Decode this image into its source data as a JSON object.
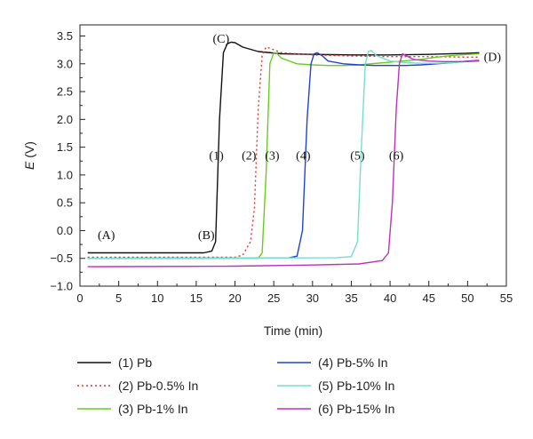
{
  "chart_data": {
    "type": "line",
    "title": "",
    "xlabel": "Time (min)",
    "ylabel_italic": "E",
    "ylabel_rest": " (V)",
    "xlim": [
      0,
      55
    ],
    "ylim": [
      -1.0,
      3.7
    ],
    "xticks": [
      "0",
      "5",
      "10",
      "15",
      "20",
      "25",
      "30",
      "35",
      "40",
      "45",
      "50",
      "55"
    ],
    "yticks": [
      "−1.0",
      "−0.5",
      "0.0",
      "0.5",
      "1.0",
      "1.5",
      "2.0",
      "2.5",
      "3.0",
      "3.5"
    ],
    "grid": false,
    "legend_position": "bottom",
    "annotations": [
      {
        "text": "(A)",
        "x": 3.4,
        "y": -0.15
      },
      {
        "text": "(B)",
        "x": 16.3,
        "y": -0.15
      },
      {
        "text": "(C)",
        "x": 18.2,
        "y": 3.38
      },
      {
        "text": "(D)",
        "x": 53.2,
        "y": 3.05
      },
      {
        "text": "(1)",
        "x": 17.6,
        "y": 1.28
      },
      {
        "text": "(2)",
        "x": 21.8,
        "y": 1.28
      },
      {
        "text": "(3)",
        "x": 24.8,
        "y": 1.28
      },
      {
        "text": "(4)",
        "x": 28.8,
        "y": 1.28
      },
      {
        "text": "(5)",
        "x": 35.8,
        "y": 1.28
      },
      {
        "text": "(6)",
        "x": 40.8,
        "y": 1.28
      }
    ],
    "series": [
      {
        "name": "(1) Pb",
        "color": "#111111",
        "dash": "",
        "x": [
          1,
          16,
          17,
          17.5,
          18,
          18.5,
          19,
          19.5,
          20,
          21,
          23,
          26,
          30,
          35,
          40,
          45,
          50,
          51.5
        ],
        "y": [
          -0.4,
          -0.4,
          -0.37,
          -0.2,
          2.0,
          3.2,
          3.36,
          3.39,
          3.38,
          3.3,
          3.22,
          3.18,
          3.17,
          3.16,
          3.16,
          3.17,
          3.19,
          3.2
        ]
      },
      {
        "name": "(2) Pb-0.5% In",
        "color": "#dd3333",
        "dash": "2,3",
        "x": [
          1,
          20,
          21,
          22,
          22.5,
          23,
          23.5,
          24,
          24.5,
          26,
          30,
          35,
          40,
          45,
          50,
          51.5
        ],
        "y": [
          -0.48,
          -0.48,
          -0.44,
          -0.2,
          0.4,
          2.2,
          3.15,
          3.3,
          3.28,
          3.2,
          3.16,
          3.14,
          3.13,
          3.13,
          3.12,
          3.12
        ]
      },
      {
        "name": "(3) Pb-1% In",
        "color": "#66cc22",
        "dash": "",
        "x": [
          1,
          23,
          23.5,
          24,
          24.5,
          25,
          25.3,
          26,
          28,
          30,
          32,
          34,
          36,
          40,
          44,
          46,
          48,
          50,
          51.5
        ],
        "y": [
          -0.5,
          -0.5,
          -0.4,
          1.0,
          3.0,
          3.2,
          3.2,
          3.1,
          3.0,
          2.98,
          2.97,
          2.97,
          2.98,
          3.03,
          3.08,
          3.12,
          3.15,
          3.17,
          3.18
        ]
      },
      {
        "name": "(4) Pb-5% In",
        "color": "#2244cc",
        "dash": "",
        "x": [
          1,
          27,
          28,
          28.7,
          29.3,
          29.8,
          30.2,
          30.6,
          31.2,
          32,
          34,
          36,
          38,
          40,
          42,
          44,
          46,
          48,
          50,
          51.5
        ],
        "y": [
          -0.5,
          -0.49,
          -0.46,
          0.0,
          2.0,
          3.0,
          3.18,
          3.2,
          3.15,
          3.05,
          3.0,
          2.98,
          2.97,
          2.97,
          2.97,
          2.98,
          3.0,
          3.02,
          3.05,
          3.06
        ]
      },
      {
        "name": "(5) Pb-10% In",
        "color": "#77ddcc",
        "dash": "",
        "x": [
          1,
          33,
          35,
          35.8,
          36.3,
          36.8,
          37.2,
          37.6,
          38.2,
          40,
          42,
          44,
          46,
          48,
          50,
          51.5
        ],
        "y": [
          -0.5,
          -0.49,
          -0.47,
          -0.2,
          1.5,
          3.0,
          3.22,
          3.24,
          3.15,
          3.05,
          3.02,
          3.01,
          3.01,
          3.02,
          3.04,
          3.05
        ]
      },
      {
        "name": "(6) Pb-15% In",
        "color": "#bb33bb",
        "dash": "",
        "x": [
          1,
          20,
          30,
          36,
          39,
          39.8,
          40.3,
          40.8,
          41.2,
          41.6,
          42,
          43,
          45,
          47,
          49,
          51.5
        ],
        "y": [
          -0.65,
          -0.64,
          -0.62,
          -0.6,
          -0.54,
          -0.4,
          0.5,
          2.2,
          3.0,
          3.18,
          3.15,
          3.08,
          3.05,
          3.04,
          3.04,
          3.05
        ]
      }
    ]
  }
}
